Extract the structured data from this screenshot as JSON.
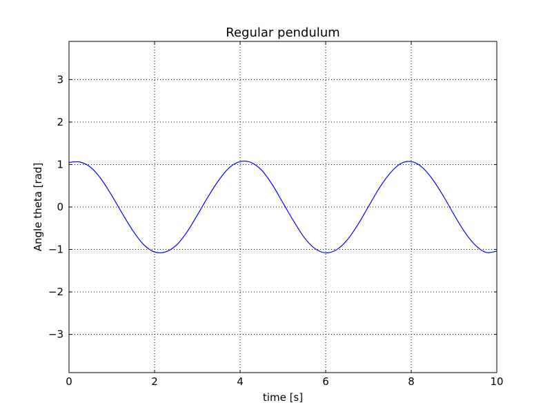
{
  "chart_data": {
    "type": "line",
    "title": "Regular pendulum",
    "xlabel": "time [s]",
    "ylabel": "Angle theta [rad]",
    "xlim": [
      0,
      10
    ],
    "ylim": [
      -3.9,
      3.9
    ],
    "xticks": [
      0,
      2,
      4,
      6,
      8,
      10
    ],
    "xtick_labels": [
      "0",
      "2",
      "4",
      "6",
      "8",
      "10"
    ],
    "yticks": [
      -3,
      -2,
      -1,
      0,
      1,
      2,
      3
    ],
    "ytick_labels": [
      "−3",
      "−2",
      "−1",
      "0",
      "1",
      "2",
      "3"
    ],
    "grid": true,
    "legend": false,
    "series": [
      {
        "color": "#0000ff",
        "x": [
          0,
          0.25,
          0.5,
          0.75,
          1.0,
          1.25,
          1.5,
          1.75,
          2.0,
          2.25,
          2.5,
          2.75,
          3.0,
          3.25,
          3.5,
          3.75,
          4.0,
          4.25,
          4.5,
          4.75,
          5.0,
          5.25,
          5.5,
          5.75,
          6.0,
          6.25,
          6.5,
          6.75,
          7.0,
          7.25,
          7.5,
          7.75,
          8.0,
          8.25,
          8.5,
          8.75,
          9.0,
          9.25,
          9.5,
          9.75,
          10.0
        ],
        "y": [
          1.05,
          1.06,
          0.94,
          0.66,
          0.27,
          -0.16,
          -0.57,
          -0.89,
          -1.06,
          -1.06,
          -0.91,
          -0.6,
          -0.19,
          0.24,
          0.63,
          0.93,
          1.07,
          1.05,
          0.87,
          0.53,
          0.1,
          -0.33,
          -0.72,
          -0.98,
          -1.08,
          -1.01,
          -0.78,
          -0.42,
          0.01,
          0.44,
          0.79,
          1.02,
          1.07,
          0.94,
          0.65,
          0.26,
          -0.18,
          -0.59,
          -0.9,
          -1.07,
          -1.04
        ]
      }
    ]
  }
}
